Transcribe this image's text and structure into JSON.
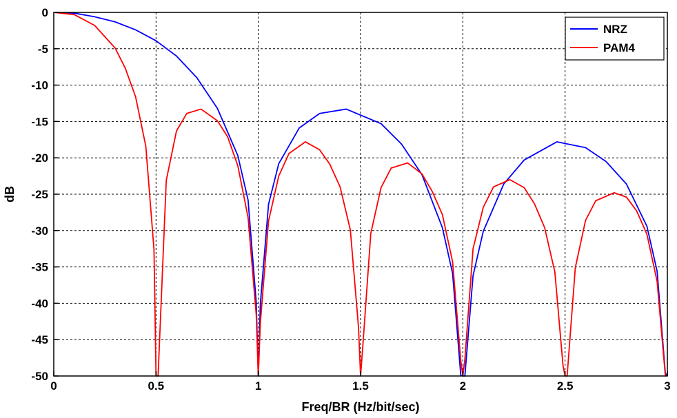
{
  "chart_data": {
    "type": "line",
    "title": "",
    "xlabel": "Freq/BR (Hz/bit/sec)",
    "ylabel": "dB",
    "xlim": [
      0,
      3
    ],
    "ylim": [
      -50,
      0
    ],
    "xticks": [
      0,
      0.5,
      1,
      1.5,
      2,
      2.5,
      3
    ],
    "xtick_labels": [
      "0",
      "0.5",
      "1",
      "1.5",
      "2",
      "2.5",
      "3"
    ],
    "yticks": [
      0,
      -5,
      -10,
      -15,
      -20,
      -25,
      -30,
      -35,
      -40,
      -45,
      -50
    ],
    "ytick_labels": [
      "0",
      "-5",
      "-10",
      "-15",
      "-20",
      "-25",
      "-30",
      "-35",
      "-40",
      "-45",
      "-50"
    ],
    "grid": true,
    "legend_position": "top-right",
    "series": [
      {
        "name": "NRZ",
        "color": "#0000ff",
        "x": [
          0,
          0.1,
          0.2,
          0.3,
          0.4,
          0.5,
          0.6,
          0.7,
          0.8,
          0.9,
          0.95,
          0.99,
          1.0,
          1.01,
          1.05,
          1.1,
          1.2,
          1.3,
          1.43,
          1.6,
          1.7,
          1.8,
          1.9,
          1.95,
          1.99,
          2.0,
          2.01,
          2.05,
          2.1,
          2.2,
          2.3,
          2.46,
          2.6,
          2.7,
          2.8,
          2.9,
          2.95,
          2.99,
          3.0
        ],
        "y": [
          0,
          -0.1,
          -0.6,
          -1.3,
          -2.4,
          -3.9,
          -6.0,
          -9.0,
          -13.2,
          -19.7,
          -25.8,
          -39.9,
          -50,
          -40.1,
          -26.4,
          -20.8,
          -15.9,
          -13.9,
          -13.3,
          -15.3,
          -18.1,
          -22.3,
          -29.6,
          -35.9,
          -49.9,
          -50,
          -50,
          -36.2,
          -30.1,
          -23.6,
          -20.3,
          -17.8,
          -18.6,
          -20.5,
          -23.6,
          -29.4,
          -35.6,
          -49.6,
          -50
        ]
      },
      {
        "name": "PAM4",
        "color": "#ff0000",
        "x": [
          0,
          0.1,
          0.2,
          0.3,
          0.35,
          0.4,
          0.45,
          0.49,
          0.5,
          0.51,
          0.55,
          0.6,
          0.65,
          0.72,
          0.8,
          0.85,
          0.9,
          0.95,
          0.99,
          1.0,
          1.01,
          1.05,
          1.1,
          1.15,
          1.23,
          1.3,
          1.35,
          1.4,
          1.45,
          1.49,
          1.5,
          1.51,
          1.55,
          1.6,
          1.65,
          1.73,
          1.8,
          1.85,
          1.9,
          1.95,
          1.99,
          2.0,
          2.01,
          2.05,
          2.1,
          2.15,
          2.23,
          2.3,
          2.35,
          2.4,
          2.45,
          2.49,
          2.5,
          2.51,
          2.55,
          2.6,
          2.65,
          2.74,
          2.8,
          2.85,
          2.9,
          2.95,
          2.99,
          3.0
        ],
        "y": [
          0,
          -0.3,
          -1.8,
          -4.9,
          -7.7,
          -11.6,
          -18.4,
          -32.6,
          -50,
          -50,
          -23.1,
          -16.3,
          -13.9,
          -13.3,
          -14.9,
          -17.1,
          -21.1,
          -28.2,
          -41.6,
          -50,
          -42.7,
          -28.7,
          -22.5,
          -19.4,
          -17.8,
          -18.9,
          -20.9,
          -24.0,
          -29.9,
          -43.3,
          -50,
          -46.3,
          -30.4,
          -24.1,
          -21.4,
          -20.7,
          -22.2,
          -24.6,
          -27.8,
          -34.3,
          -47.9,
          -50,
          -47.7,
          -32.5,
          -26.8,
          -24.0,
          -23.0,
          -24.1,
          -26.3,
          -29.6,
          -35.7,
          -48.6,
          -50,
          -50,
          -35.1,
          -28.6,
          -25.9,
          -24.8,
          -25.4,
          -27.3,
          -30.5,
          -37.0,
          -49.9,
          -50
        ]
      }
    ]
  }
}
